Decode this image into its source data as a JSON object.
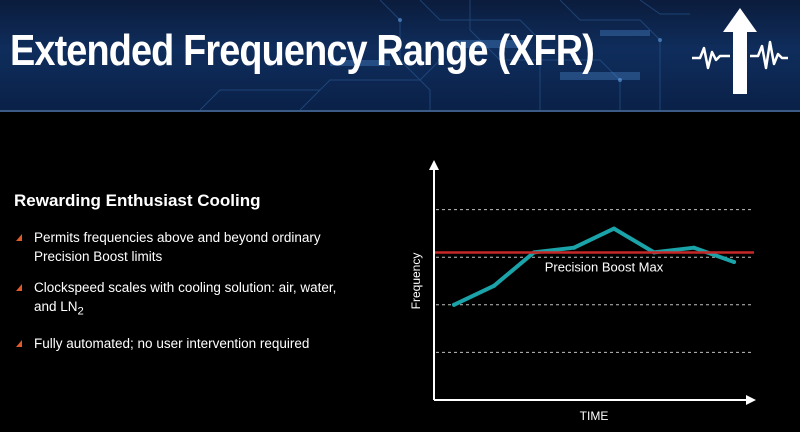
{
  "slide": {
    "title": "Extended Frequency Range (XFR)",
    "icon": "xfr-arrow-waveform-icon"
  },
  "content": {
    "subtitle": "Rewarding Enthusiast Cooling",
    "bullets": [
      {
        "text": "Permits frequencies above and beyond ordinary Precision Boost limits"
      },
      {
        "text": "Clockspeed scales with cooling solution: air, water, and LN",
        "subscript": "2"
      },
      {
        "text": "Fully automated; no user intervention required"
      }
    ],
    "bullet_color": "#e05a2b"
  },
  "chart_data": {
    "type": "line",
    "xlabel": "TIME",
    "ylabel": "Frequency",
    "x": [
      0,
      1,
      2,
      3,
      4,
      5,
      6,
      7
    ],
    "xlim": [
      -0.5,
      7.5
    ],
    "ylim": [
      0,
      5
    ],
    "grid": "horizontal-dashed",
    "series": [
      {
        "values": [
          2.0,
          2.4,
          3.1,
          3.2,
          3.6,
          3.1,
          3.2,
          2.9
        ],
        "color": "#1aa3a8"
      }
    ],
    "reference_line": {
      "label": "Precision Boost Max",
      "value": 3.1,
      "color": "#c62828"
    },
    "colors": {
      "axis": "#ffffff",
      "grid": "#bfbfbf",
      "text": "#ffffff"
    }
  }
}
